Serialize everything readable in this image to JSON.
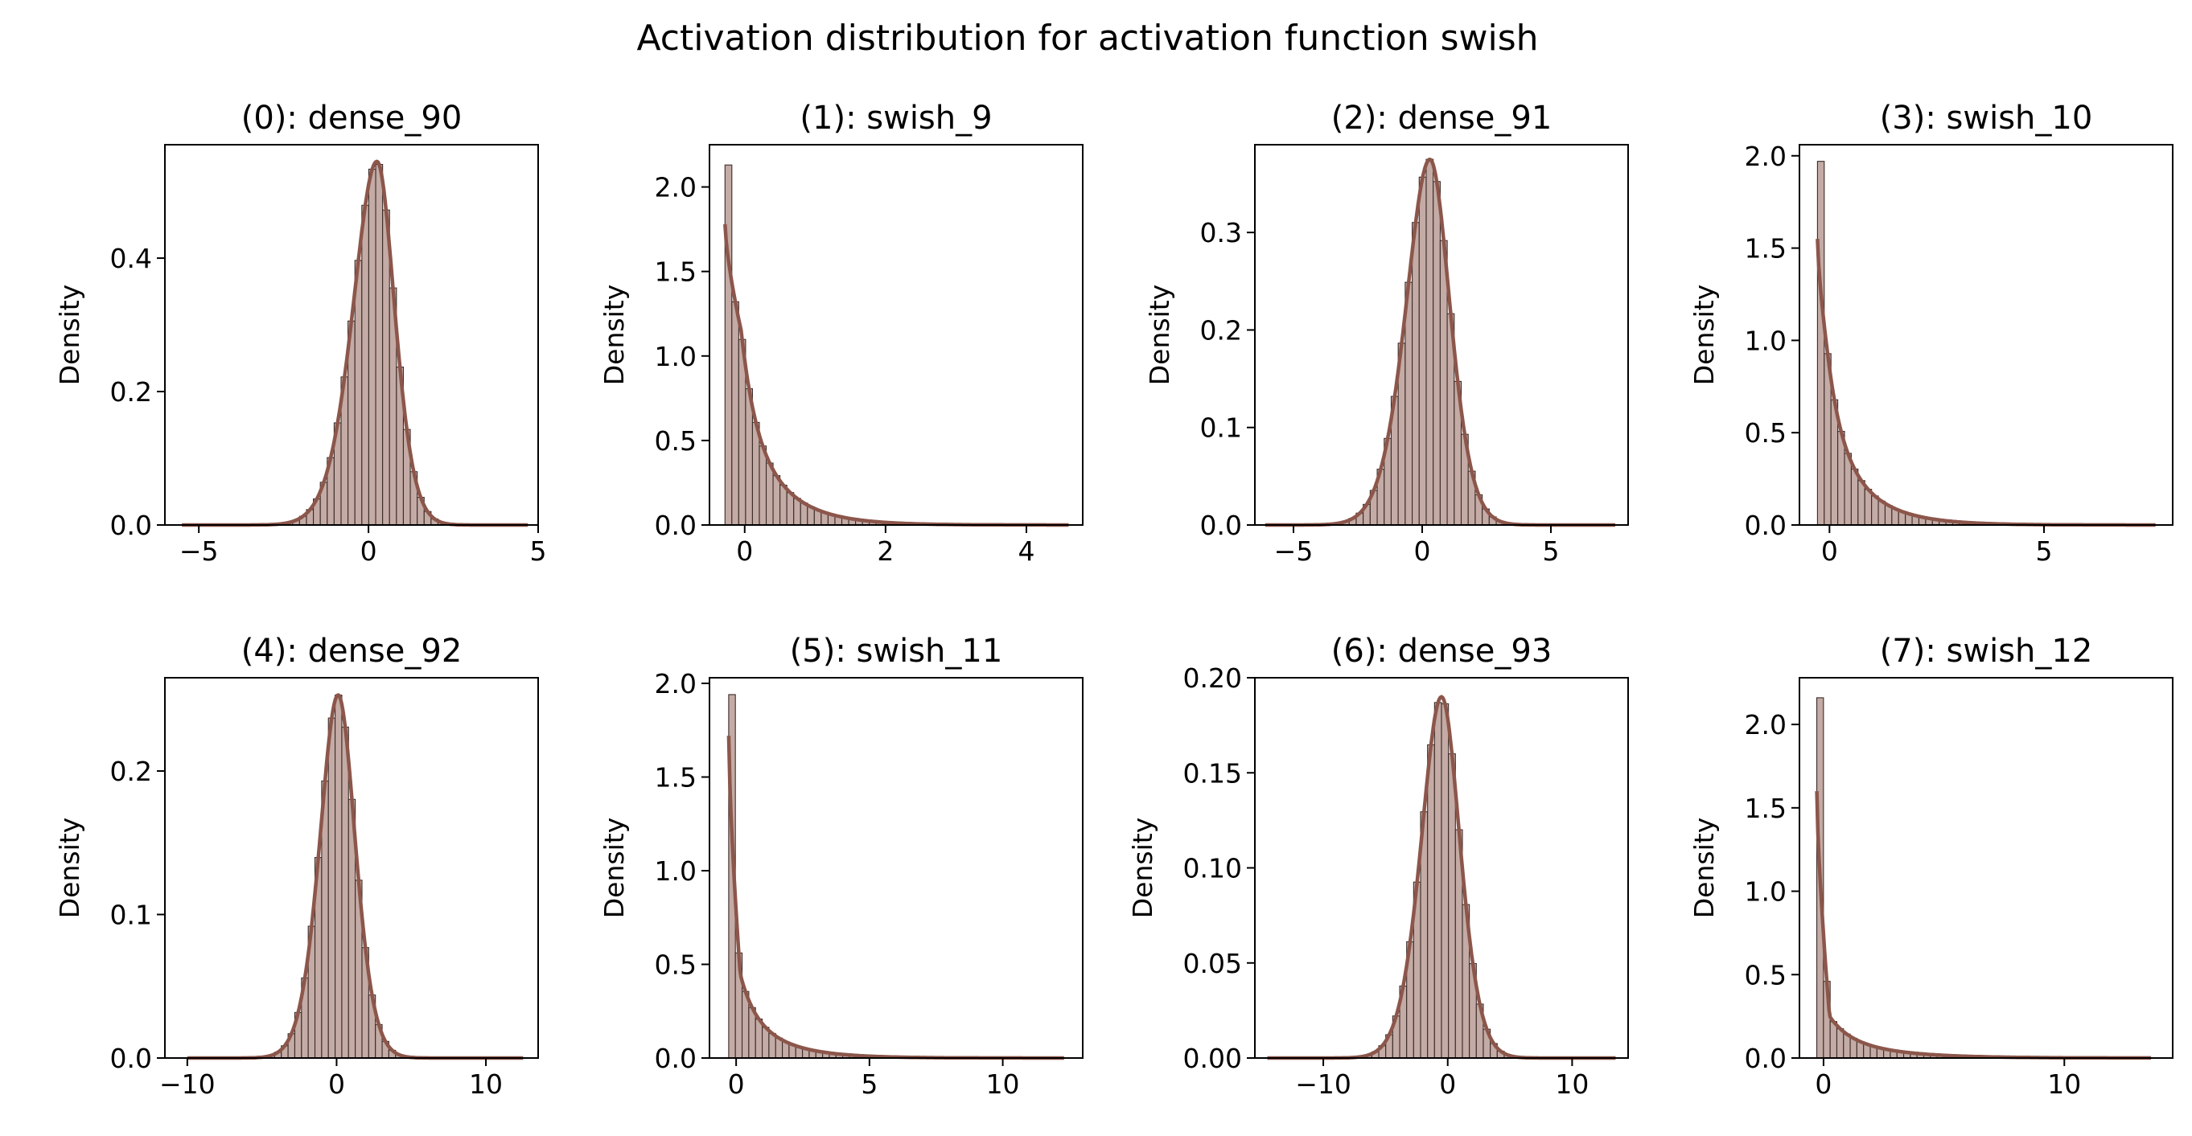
{
  "suptitle": "Activation distribution for activation function swish",
  "colors": {
    "bar_fill": "#c4aba5",
    "bar_edge": "#3a2c29",
    "kde": "#8c564b",
    "axes": "#000000"
  },
  "chart_data": [
    {
      "type": "bar",
      "title": "(0): dense_90",
      "ylabel": "Density",
      "xlim": [
        -6,
        5
      ],
      "ylim": [
        0,
        0.57
      ],
      "xticks": [
        -5,
        0,
        5
      ],
      "xtick_labels": [
        "−5",
        "0",
        "5"
      ],
      "yticks": [
        0.0,
        0.2,
        0.4
      ],
      "ytick_labels": [
        "0.0",
        "0.2",
        "0.4"
      ],
      "dist": {
        "kind": "bell",
        "mu": 0.25,
        "sigma_left": 0.95,
        "sigma_right": 0.7,
        "peak": 0.545,
        "x_min": -5.5,
        "x_max": 4.7
      }
    },
    {
      "type": "bar",
      "title": "(1): swish_9",
      "ylabel": "Density",
      "xlim": [
        -0.5,
        4.8
      ],
      "ylim": [
        0,
        2.25
      ],
      "xticks": [
        0,
        2,
        4
      ],
      "xtick_labels": [
        "0",
        "2",
        "4"
      ],
      "yticks": [
        0.0,
        0.5,
        1.0,
        1.5,
        2.0
      ],
      "ytick_labels": [
        "0.0",
        "0.5",
        "1.0",
        "1.5",
        "2.0"
      ],
      "dist": {
        "kind": "decay",
        "x_min": -0.28,
        "x_max": 4.6,
        "first_bar": 2.13,
        "kde_peak": 1.78,
        "knee_x": -0.05,
        "knee_y": 1.15,
        "tail_scale": 0.55,
        "mid_y": 1.0
      }
    },
    {
      "type": "bar",
      "title": "(2): dense_91",
      "ylabel": "Density",
      "xlim": [
        -6.5,
        8
      ],
      "ylim": [
        0,
        0.39
      ],
      "xticks": [
        -5,
        0,
        5
      ],
      "xtick_labels": [
        "−5",
        "0",
        "5"
      ],
      "yticks": [
        0.0,
        0.1,
        0.2,
        0.3
      ],
      "ytick_labels": [
        "0.0",
        "0.1",
        "0.2",
        "0.3"
      ],
      "dist": {
        "kind": "bell",
        "mu": 0.3,
        "sigma_left": 1.25,
        "sigma_right": 1.05,
        "peak": 0.375,
        "x_min": -6.1,
        "x_max": 7.5
      }
    },
    {
      "type": "bar",
      "title": "(3): swish_10",
      "ylabel": "Density",
      "xlim": [
        -0.7,
        8
      ],
      "ylim": [
        0,
        2.06
      ],
      "xticks": [
        0,
        5
      ],
      "xtick_labels": [
        "0",
        "5"
      ],
      "yticks": [
        0.0,
        0.5,
        1.0,
        1.5,
        2.0
      ],
      "ytick_labels": [
        "0.0",
        "0.5",
        "1.0",
        "1.5",
        "2.0"
      ],
      "dist": {
        "kind": "decay",
        "x_min": -0.28,
        "x_max": 7.6,
        "first_bar": 1.97,
        "kde_peak": 1.55,
        "knee_x": 0.0,
        "knee_y": 0.85,
        "tail_scale": 0.9,
        "mid_y": 0.6
      }
    },
    {
      "type": "bar",
      "title": "(4): dense_92",
      "ylabel": "Density",
      "xlim": [
        -11.5,
        13.5
      ],
      "ylim": [
        0,
        0.265
      ],
      "xticks": [
        -10,
        0,
        10
      ],
      "xtick_labels": [
        "−10",
        "0",
        "10"
      ],
      "yticks": [
        0.0,
        0.1,
        0.2
      ],
      "ytick_labels": [
        "0.0",
        "0.1",
        "0.2"
      ],
      "dist": {
        "kind": "bell",
        "mu": 0.1,
        "sigma_left": 1.65,
        "sigma_right": 1.55,
        "peak": 0.253,
        "x_min": -10,
        "x_max": 12.5
      }
    },
    {
      "type": "bar",
      "title": "(5): swish_11",
      "ylabel": "Density",
      "xlim": [
        -1,
        13
      ],
      "ylim": [
        0,
        2.03
      ],
      "xticks": [
        0,
        5,
        10
      ],
      "xtick_labels": [
        "0",
        "5",
        "10"
      ],
      "yticks": [
        0.0,
        0.5,
        1.0,
        1.5,
        2.0
      ],
      "ytick_labels": [
        "0.0",
        "0.5",
        "1.0",
        "1.5",
        "2.0"
      ],
      "dist": {
        "kind": "decay",
        "x_min": -0.28,
        "x_max": 12.3,
        "first_bar": 1.94,
        "kde_peak": 1.72,
        "knee_x": 0.15,
        "knee_y": 0.45,
        "tail_scale": 1.5,
        "mid_y": 0.35
      }
    },
    {
      "type": "bar",
      "title": "(6): dense_93",
      "ylabel": "Density",
      "xlim": [
        -15.5,
        14.5
      ],
      "ylim": [
        0,
        0.2
      ],
      "xticks": [
        -10,
        0,
        10
      ],
      "xtick_labels": [
        "−10",
        "0",
        "10"
      ],
      "yticks": [
        0.0,
        0.05,
        0.1,
        0.15,
        0.2
      ],
      "ytick_labels": [
        "0.00",
        "0.05",
        "0.10",
        "0.15",
        "0.20"
      ],
      "dist": {
        "kind": "bell",
        "mu": -0.5,
        "sigma_left": 2.2,
        "sigma_right": 2.0,
        "peak": 0.19,
        "x_min": -14.5,
        "x_max": 13.5
      }
    },
    {
      "type": "bar",
      "title": "(7): swish_12",
      "ylabel": "Density",
      "xlim": [
        -1,
        14.5
      ],
      "ylim": [
        0,
        2.28
      ],
      "xticks": [
        0,
        10
      ],
      "xtick_labels": [
        "0",
        "10"
      ],
      "yticks": [
        0.0,
        0.5,
        1.0,
        1.5,
        2.0
      ],
      "ytick_labels": [
        "0.0",
        "0.5",
        "1.0",
        "1.5",
        "2.0"
      ],
      "dist": {
        "kind": "decay",
        "x_min": -0.28,
        "x_max": 13.6,
        "first_bar": 2.16,
        "kde_peak": 1.6,
        "knee_x": 0.25,
        "knee_y": 0.25,
        "tail_scale": 2.2,
        "mid_y": 0.15
      }
    }
  ]
}
